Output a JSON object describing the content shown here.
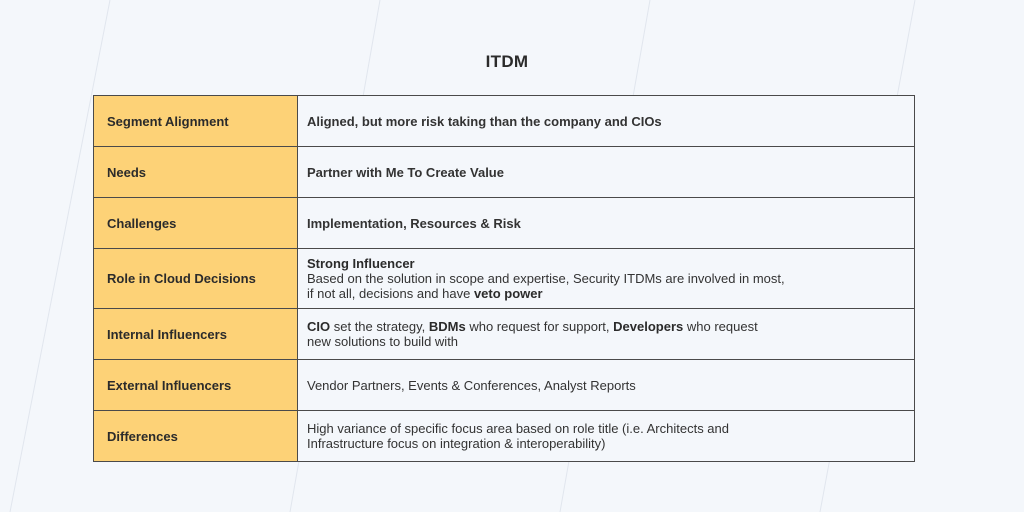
{
  "title": "ITDM",
  "rows": [
    {
      "label": "Segment Alignment",
      "value": "Aligned, but more risk taking than the company and CIOs"
    },
    {
      "label": "Needs",
      "value": "Partner with Me To Create Value"
    },
    {
      "label": "Challenges",
      "value": "Implementation, Resources & Risk"
    },
    {
      "label": "Role in Cloud Decisions",
      "heading": "Strong Influencer",
      "line1": "Based on the solution in scope and expertise, Security ITDMs are involved in most,",
      "line2_pre": "if not all, decisions and have ",
      "line2_bold": "veto power"
    },
    {
      "label": "Internal Influencers",
      "b1": "CIO",
      "t1": " set the strategy, ",
      "b2": "BDMs",
      "t2": " who request for support, ",
      "b3": "Developers",
      "t3": " who request",
      "line2": "new solutions to build with"
    },
    {
      "label": "External Influencers",
      "value": "Vendor Partners, Events & Conferences, Analyst Reports"
    },
    {
      "label": "Differences",
      "line1": "High variance of specific focus area based on role title (i.e. Architects and",
      "line2": "Infrastructure focus on integration & interoperability)"
    }
  ]
}
